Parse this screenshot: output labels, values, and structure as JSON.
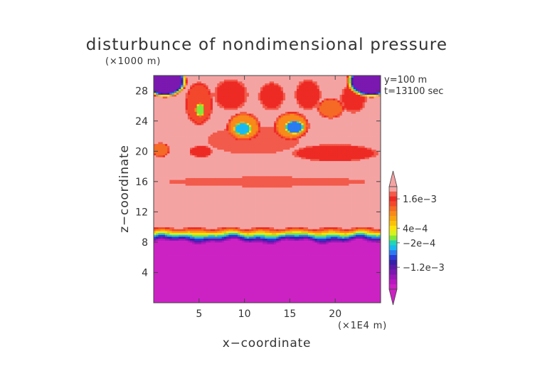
{
  "chart_data": {
    "type": "heatmap",
    "title": "disturbunce of nondimensional pressure",
    "y_scale_note": "(×1000 m)",
    "x_scale_note": "(×1E4 m)",
    "xlabel": "x−coordinate",
    "ylabel": "z−coordinate",
    "xlim": [
      0,
      25
    ],
    "ylim": [
      0,
      30
    ],
    "x_ticks": [
      5,
      10,
      15,
      20
    ],
    "y_ticks": [
      4,
      8,
      12,
      16,
      20,
      24,
      28
    ],
    "x_tick_labels": [
      "5",
      "10",
      "15",
      "20"
    ],
    "y_tick_labels": [
      "4",
      "8",
      "12",
      "16",
      "20",
      "24",
      "28"
    ],
    "annotations": [
      "y=100 m",
      "t=13100 sec"
    ],
    "colorbar": {
      "labels": [
        {
          "text": "1.6e−3",
          "value": 0.0016
        },
        {
          "text": "4e−4",
          "value": 0.0004
        },
        {
          "text": "−2e−4",
          "value": -0.0002
        },
        {
          "text": "−1.2e−3",
          "value": -0.0012
        }
      ],
      "levels": [
        {
          "from": 0.0019,
          "to": 0.0021,
          "color": "#f4a3a3"
        },
        {
          "from": 0.0017,
          "to": 0.0019,
          "color": "#f25a4b"
        },
        {
          "from": 0.0015,
          "to": 0.0017,
          "color": "#ee2a25"
        },
        {
          "from": 0.0013,
          "to": 0.0015,
          "color": "#f3482c"
        },
        {
          "from": 0.0011,
          "to": 0.0013,
          "color": "#f56a25"
        },
        {
          "from": 0.0009,
          "to": 0.0011,
          "color": "#f78a1a"
        },
        {
          "from": 0.0007,
          "to": 0.0009,
          "color": "#f9a40f"
        },
        {
          "from": 0.0005,
          "to": 0.0007,
          "color": "#fbc20a"
        },
        {
          "from": 0.0003,
          "to": 0.0005,
          "color": "#fde20a"
        },
        {
          "from": 0.0001,
          "to": 0.0003,
          "color": "#d6f21e"
        },
        {
          "from": -0.0001,
          "to": 0.0001,
          "color": "#7fe83a"
        },
        {
          "from": -0.0003,
          "to": -0.0001,
          "color": "#22d4b8"
        },
        {
          "from": -0.0005,
          "to": -0.0003,
          "color": "#1ab8f0"
        },
        {
          "from": -0.0007,
          "to": -0.0005,
          "color": "#2a7af0"
        },
        {
          "from": -0.0009,
          "to": -0.0007,
          "color": "#2a3bd6"
        },
        {
          "from": -0.0011,
          "to": -0.0009,
          "color": "#3520a8"
        },
        {
          "from": -0.0013,
          "to": -0.0011,
          "color": "#5a1aa8"
        },
        {
          "from": -0.0015,
          "to": -0.0013,
          "color": "#7a18b0"
        },
        {
          "from": -0.0017,
          "to": -0.0015,
          "color": "#9a18b8"
        },
        {
          "from": -0.0019,
          "to": -0.0017,
          "color": "#b818c0"
        },
        {
          "from": -0.0021,
          "to": -0.0019,
          "color": "#cc22c4"
        }
      ],
      "top_extend_color": "#f4a3a3",
      "bottom_extend_color": "#cc22c4"
    },
    "field_regions": {
      "background_value": 0.002,
      "lower_layer": {
        "z_top": 8.0,
        "value": -0.002
      },
      "transition_band": {
        "z_from": 8.0,
        "z_to": 10.0
      },
      "features": [
        {
          "x": 12.5,
          "z": 16.0,
          "rx": 12.0,
          "rz": 0.7,
          "value": 0.0017
        },
        {
          "x": 20.0,
          "z": 19.8,
          "rx": 5.0,
          "rz": 1.2,
          "value": 0.0015
        },
        {
          "x": 0.8,
          "z": 20.2,
          "rx": 1.0,
          "rz": 1.0,
          "value": 0.0011
        },
        {
          "x": 5.2,
          "z": 20.0,
          "rx": 1.3,
          "rz": 0.8,
          "value": 0.0015
        },
        {
          "x": 11.0,
          "z": 21.5,
          "rx": 5.5,
          "rz": 2.0,
          "value": 0.0017
        },
        {
          "x": 9.9,
          "z": 23.3,
          "rx": 1.9,
          "rz": 1.9,
          "value": 0.0009
        },
        {
          "x": 9.8,
          "z": 23.0,
          "rx": 1.0,
          "rz": 0.9,
          "value": -0.0004
        },
        {
          "x": 15.2,
          "z": 23.4,
          "rx": 2.0,
          "rz": 1.9,
          "value": 0.0009
        },
        {
          "x": 15.5,
          "z": 23.2,
          "rx": 1.1,
          "rz": 0.9,
          "value": -0.0006
        },
        {
          "x": 5.0,
          "z": 26.3,
          "rx": 1.6,
          "rz": 3.0,
          "value": 0.0013
        },
        {
          "x": 5.1,
          "z": 25.5,
          "rx": 0.5,
          "rz": 0.9,
          "value": 0.0
        },
        {
          "x": 19.5,
          "z": 25.7,
          "rx": 1.5,
          "rz": 1.4,
          "value": 0.0011
        },
        {
          "x": 8.5,
          "z": 27.5,
          "rx": 2.0,
          "rz": 2.2,
          "value": 0.0016
        },
        {
          "x": 13.0,
          "z": 27.3,
          "rx": 1.5,
          "rz": 2.0,
          "value": 0.0016
        },
        {
          "x": 17.0,
          "z": 27.5,
          "rx": 1.5,
          "rz": 2.2,
          "value": 0.0016
        },
        {
          "x": 22.0,
          "z": 27.0,
          "rx": 1.5,
          "rz": 2.0,
          "value": 0.0016
        },
        {
          "x": 1.2,
          "z": 29.3,
          "rx": 2.5,
          "rz": 2.2,
          "value": -0.0014
        },
        {
          "x": 24.0,
          "z": 29.3,
          "rx": 2.8,
          "rz": 2.2,
          "value": -0.0014
        }
      ]
    }
  }
}
